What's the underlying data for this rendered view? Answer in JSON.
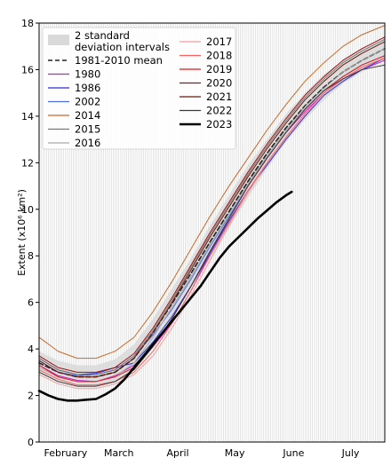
{
  "chart_data": {
    "type": "line",
    "title": "",
    "xlabel": "",
    "ylabel": "Extent (x10⁶ km²)",
    "ylim": [
      0,
      18
    ],
    "yticks": [
      0,
      2,
      4,
      6,
      8,
      10,
      12,
      14,
      16,
      18
    ],
    "xlim": [
      0,
      182
    ],
    "month_labels": [
      {
        "label": "February",
        "day": 14
      },
      {
        "label": "March",
        "day": 42
      },
      {
        "label": "April",
        "day": 73
      },
      {
        "label": "May",
        "day": 103
      },
      {
        "label": "June",
        "day": 134
      },
      {
        "label": "July",
        "day": 164
      }
    ],
    "grid": "daily vertical gridlines",
    "legend_position": "top-left",
    "band": {
      "name": "2 standard deviation intervals",
      "color": "#d9d9d9",
      "x": [
        0,
        10,
        20,
        30,
        40,
        50,
        60,
        70,
        80,
        90,
        100,
        110,
        120,
        130,
        140,
        150,
        160,
        170,
        182
      ],
      "low": [
        3.0,
        2.55,
        2.35,
        2.35,
        2.55,
        3.1,
        4.1,
        5.3,
        6.6,
        7.9,
        9.2,
        10.5,
        11.75,
        12.9,
        13.85,
        14.7,
        15.4,
        15.9,
        16.4
      ],
      "high": [
        3.9,
        3.5,
        3.3,
        3.3,
        3.55,
        4.2,
        5.3,
        6.6,
        7.9,
        9.3,
        10.6,
        11.9,
        13.0,
        14.1,
        15.0,
        15.8,
        16.4,
        16.9,
        17.4
      ]
    },
    "series": [
      {
        "name": "1981-2010 mean",
        "color": "#222222",
        "style": "dashed",
        "x": [
          0,
          10,
          20,
          30,
          40,
          50,
          60,
          70,
          80,
          90,
          100,
          110,
          120,
          130,
          140,
          150,
          160,
          170,
          182
        ],
        "values": [
          3.4,
          3.0,
          2.8,
          2.8,
          3.0,
          3.6,
          4.7,
          5.95,
          7.25,
          8.6,
          9.9,
          11.2,
          12.4,
          13.5,
          14.45,
          15.25,
          15.9,
          16.4,
          16.9
        ]
      },
      {
        "name": "1980",
        "color": "#c71fc7",
        "style": "solid",
        "x": [
          0,
          10,
          20,
          30,
          40,
          50,
          60,
          70,
          80,
          90,
          100,
          110,
          120,
          130,
          140,
          150,
          160,
          170,
          182
        ],
        "values": [
          3.3,
          2.85,
          2.65,
          2.6,
          2.85,
          3.3,
          4.1,
          5.1,
          6.5,
          8.1,
          9.6,
          11.0,
          12.2,
          13.3,
          14.2,
          15.0,
          15.6,
          16.0,
          16.4
        ]
      },
      {
        "name": "1986",
        "color": "#2d2dd6",
        "style": "solid",
        "x": [
          0,
          10,
          20,
          30,
          40,
          50,
          60,
          70,
          80,
          90,
          100,
          110,
          120,
          130,
          140,
          150,
          160,
          170,
          182
        ],
        "values": [
          3.6,
          3.1,
          2.9,
          2.95,
          3.2,
          3.4,
          4.3,
          5.4,
          6.7,
          8.1,
          9.5,
          10.8,
          11.9,
          13.0,
          14.0,
          14.9,
          15.5,
          16.0,
          16.5
        ]
      },
      {
        "name": "2002",
        "color": "#4f6fe0",
        "style": "solid",
        "x": [
          0,
          10,
          20,
          30,
          40,
          50,
          60,
          70,
          80,
          90,
          100,
          110,
          120,
          130,
          140,
          150,
          160,
          170,
          182
        ],
        "values": [
          3.5,
          3.0,
          2.85,
          2.9,
          3.1,
          3.7,
          4.6,
          5.7,
          7.0,
          8.4,
          9.7,
          11.0,
          12.2,
          13.3,
          14.3,
          15.1,
          15.7,
          16.2,
          16.6
        ]
      },
      {
        "name": "2014",
        "color": "#c86a2a",
        "style": "solid",
        "x": [
          0,
          10,
          20,
          30,
          40,
          50,
          60,
          70,
          80,
          90,
          100,
          110,
          120,
          130,
          140,
          150,
          160,
          170,
          182
        ],
        "values": [
          4.5,
          3.9,
          3.6,
          3.6,
          3.9,
          4.5,
          5.6,
          6.9,
          8.3,
          9.7,
          11.0,
          12.2,
          13.4,
          14.5,
          15.5,
          16.3,
          17.0,
          17.5,
          17.9
        ]
      },
      {
        "name": "2015",
        "color": "#777777",
        "style": "solid",
        "x": [
          0,
          10,
          20,
          30,
          40,
          50,
          60,
          70,
          80,
          90,
          100,
          110,
          120,
          130,
          140,
          150,
          160,
          170,
          182
        ],
        "values": [
          3.6,
          3.1,
          2.9,
          2.9,
          3.1,
          3.7,
          4.8,
          6.1,
          7.5,
          8.9,
          10.2,
          11.5,
          12.7,
          13.8,
          14.8,
          15.6,
          16.3,
          16.8,
          17.3
        ]
      },
      {
        "name": "2016",
        "color": "#aaaaaa",
        "style": "solid",
        "x": [
          0,
          10,
          20,
          30,
          40,
          50,
          60,
          70,
          80,
          90,
          100,
          110,
          120,
          130,
          140,
          150,
          160,
          170,
          182
        ],
        "values": [
          3.2,
          2.8,
          2.6,
          2.6,
          2.8,
          3.4,
          4.5,
          5.8,
          7.1,
          8.5,
          9.8,
          11.1,
          12.3,
          13.4,
          14.4,
          15.2,
          15.9,
          16.4,
          16.9
        ]
      },
      {
        "name": "2017",
        "color": "#f0a0a0",
        "style": "solid",
        "x": [
          0,
          10,
          20,
          30,
          40,
          50,
          60,
          70,
          80,
          90,
          100,
          110,
          120,
          130,
          140,
          150,
          160,
          170,
          182
        ],
        "values": [
          2.9,
          2.5,
          2.3,
          2.3,
          2.5,
          2.9,
          3.7,
          4.9,
          6.3,
          7.8,
          9.3,
          10.7,
          12.0,
          13.1,
          14.1,
          15.0,
          15.6,
          16.1,
          16.5
        ]
      },
      {
        "name": "2018",
        "color": "#ff6060",
        "style": "solid",
        "x": [
          0,
          10,
          20,
          30,
          40,
          50,
          60,
          70,
          80,
          90,
          100,
          110,
          120,
          130,
          140,
          150,
          160,
          170,
          182
        ],
        "values": [
          3.1,
          2.7,
          2.45,
          2.45,
          2.6,
          3.0,
          3.9,
          5.1,
          6.5,
          8.0,
          9.4,
          10.8,
          12.0,
          13.1,
          14.1,
          15.0,
          15.6,
          16.1,
          16.5
        ]
      },
      {
        "name": "2019",
        "color": "#e01818",
        "style": "solid",
        "x": [
          0,
          10,
          20,
          30,
          40,
          50,
          60,
          70,
          80,
          90,
          100,
          110,
          120,
          130,
          140,
          150,
          160,
          170,
          182
        ],
        "values": [
          3.3,
          2.8,
          2.6,
          2.6,
          2.8,
          3.2,
          4.1,
          5.3,
          6.7,
          8.2,
          9.6,
          11.0,
          12.2,
          13.3,
          14.3,
          15.1,
          15.7,
          16.2,
          16.6
        ]
      },
      {
        "name": "2020",
        "color": "#a01010",
        "style": "solid",
        "x": [
          0,
          10,
          20,
          30,
          40,
          50,
          60,
          70,
          80,
          90,
          100,
          110,
          120,
          130,
          140,
          150,
          160,
          170,
          182
        ],
        "values": [
          3.7,
          3.2,
          3.0,
          3.0,
          3.2,
          3.8,
          4.9,
          6.2,
          7.6,
          9.0,
          10.3,
          11.6,
          12.8,
          13.9,
          14.9,
          15.7,
          16.4,
          16.9,
          17.4
        ]
      },
      {
        "name": "2021",
        "color": "#6a1a0a",
        "style": "solid",
        "x": [
          0,
          10,
          20,
          30,
          40,
          50,
          60,
          70,
          80,
          90,
          100,
          110,
          120,
          130,
          140,
          150,
          160,
          170,
          182
        ],
        "values": [
          3.5,
          3.0,
          2.8,
          2.8,
          3.0,
          3.6,
          4.7,
          6.0,
          7.4,
          8.8,
          10.1,
          11.4,
          12.6,
          13.7,
          14.7,
          15.5,
          16.2,
          16.7,
          17.2
        ]
      },
      {
        "name": "2022",
        "color": "#3a3a3a",
        "style": "solid",
        "x": [
          0,
          10,
          20,
          30,
          40,
          50,
          60,
          70,
          80,
          90,
          100,
          110,
          120,
          130,
          140,
          150,
          160,
          170,
          182
        ],
        "values": [
          3.0,
          2.6,
          2.4,
          2.4,
          2.6,
          3.1,
          4.1,
          5.3,
          6.7,
          8.2,
          9.6,
          11.0,
          12.2,
          13.3,
          14.3,
          15.1,
          15.6,
          16.0,
          16.2
        ]
      },
      {
        "name": "2023",
        "color": "#000000",
        "style": "bold",
        "x": [
          0,
          5,
          10,
          15,
          20,
          25,
          30,
          35,
          40,
          45,
          50,
          55,
          60,
          65,
          70,
          75,
          80,
          85,
          90,
          95,
          100,
          105,
          110,
          115,
          120,
          125,
          130,
          133
        ],
        "values": [
          2.2,
          2.0,
          1.85,
          1.78,
          1.78,
          1.82,
          1.85,
          2.05,
          2.3,
          2.7,
          3.2,
          3.7,
          4.2,
          4.7,
          5.2,
          5.7,
          6.2,
          6.7,
          7.3,
          7.9,
          8.4,
          8.8,
          9.2,
          9.6,
          9.95,
          10.3,
          10.6,
          10.75
        ]
      }
    ]
  }
}
